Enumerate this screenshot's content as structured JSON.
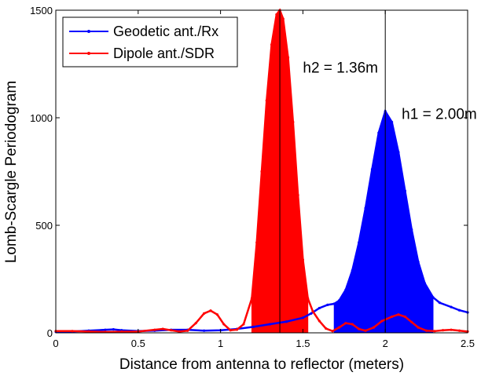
{
  "chart_data": {
    "type": "line",
    "xlabel": "Distance from antenna to reflector (meters)",
    "ylabel": "Lomb-Scargle Periodogram",
    "xlim": [
      0,
      2.5
    ],
    "ylim": [
      0,
      1500
    ],
    "x_ticks": [
      0,
      0.5,
      1,
      1.5,
      2,
      2.5
    ],
    "x_tick_labels": [
      "0",
      "0.5",
      "1",
      "1.5",
      "2",
      "2.5"
    ],
    "y_ticks": [
      0,
      500,
      1000,
      1500
    ],
    "y_tick_labels": [
      "0",
      "500",
      "1000",
      "1500"
    ],
    "grid": false,
    "legend_position": "top-left",
    "series": [
      {
        "name": "Geodetic ant./Rx",
        "color": "#0000ff",
        "peak_x": 2.0,
        "peak_y": 1030,
        "filled_region_x": [
          1.69,
          2.29
        ],
        "points": [
          [
            0.0,
            5
          ],
          [
            0.1,
            6
          ],
          [
            0.2,
            10
          ],
          [
            0.3,
            14
          ],
          [
            0.35,
            16
          ],
          [
            0.4,
            12
          ],
          [
            0.5,
            8
          ],
          [
            0.6,
            10
          ],
          [
            0.7,
            14
          ],
          [
            0.8,
            14
          ],
          [
            0.9,
            10
          ],
          [
            1.0,
            12
          ],
          [
            1.1,
            18
          ],
          [
            1.2,
            28
          ],
          [
            1.3,
            40
          ],
          [
            1.4,
            52
          ],
          [
            1.5,
            70
          ],
          [
            1.55,
            90
          ],
          [
            1.6,
            115
          ],
          [
            1.65,
            130
          ],
          [
            1.69,
            135
          ],
          [
            1.72,
            150
          ],
          [
            1.76,
            200
          ],
          [
            1.8,
            290
          ],
          [
            1.84,
            420
          ],
          [
            1.88,
            580
          ],
          [
            1.92,
            760
          ],
          [
            1.96,
            930
          ],
          [
            2.0,
            1030
          ],
          [
            2.04,
            980
          ],
          [
            2.08,
            840
          ],
          [
            2.12,
            660
          ],
          [
            2.16,
            480
          ],
          [
            2.2,
            330
          ],
          [
            2.24,
            230
          ],
          [
            2.29,
            165
          ],
          [
            2.33,
            140
          ],
          [
            2.4,
            120
          ],
          [
            2.45,
            105
          ],
          [
            2.5,
            95
          ]
        ]
      },
      {
        "name": "Dipole ant./SDR",
        "color": "#ff0000",
        "peak_x": 1.36,
        "peak_y": 1500,
        "filled_region_x": [
          1.19,
          1.53
        ],
        "points": [
          [
            0.0,
            8
          ],
          [
            0.1,
            8
          ],
          [
            0.2,
            6
          ],
          [
            0.3,
            4
          ],
          [
            0.4,
            5
          ],
          [
            0.5,
            6
          ],
          [
            0.6,
            14
          ],
          [
            0.65,
            18
          ],
          [
            0.7,
            12
          ],
          [
            0.75,
            6
          ],
          [
            0.8,
            10
          ],
          [
            0.85,
            45
          ],
          [
            0.9,
            90
          ],
          [
            0.94,
            103
          ],
          [
            0.98,
            85
          ],
          [
            1.02,
            40
          ],
          [
            1.06,
            12
          ],
          [
            1.1,
            15
          ],
          [
            1.14,
            40
          ],
          [
            1.19,
            160
          ],
          [
            1.22,
            420
          ],
          [
            1.25,
            750
          ],
          [
            1.28,
            1080
          ],
          [
            1.31,
            1340
          ],
          [
            1.34,
            1480
          ],
          [
            1.36,
            1500
          ],
          [
            1.38,
            1460
          ],
          [
            1.41,
            1280
          ],
          [
            1.44,
            980
          ],
          [
            1.47,
            640
          ],
          [
            1.5,
            340
          ],
          [
            1.53,
            160
          ],
          [
            1.56,
            100
          ],
          [
            1.6,
            55
          ],
          [
            1.64,
            20
          ],
          [
            1.68,
            8
          ],
          [
            1.72,
            25
          ],
          [
            1.76,
            45
          ],
          [
            1.8,
            40
          ],
          [
            1.84,
            18
          ],
          [
            1.88,
            10
          ],
          [
            1.93,
            25
          ],
          [
            1.98,
            55
          ],
          [
            2.04,
            75
          ],
          [
            2.08,
            85
          ],
          [
            2.12,
            75
          ],
          [
            2.16,
            50
          ],
          [
            2.2,
            25
          ],
          [
            2.25,
            10
          ],
          [
            2.3,
            8
          ],
          [
            2.35,
            12
          ],
          [
            2.4,
            14
          ],
          [
            2.45,
            10
          ],
          [
            2.5,
            6
          ]
        ]
      }
    ],
    "vertical_lines_x": [
      1.36,
      2.0
    ],
    "annotations": [
      {
        "text": "h2 = 1.36m",
        "x": 1.5,
        "y": 1210
      },
      {
        "text": "h1 = 2.00m",
        "x": 2.1,
        "y": 995
      }
    ]
  }
}
